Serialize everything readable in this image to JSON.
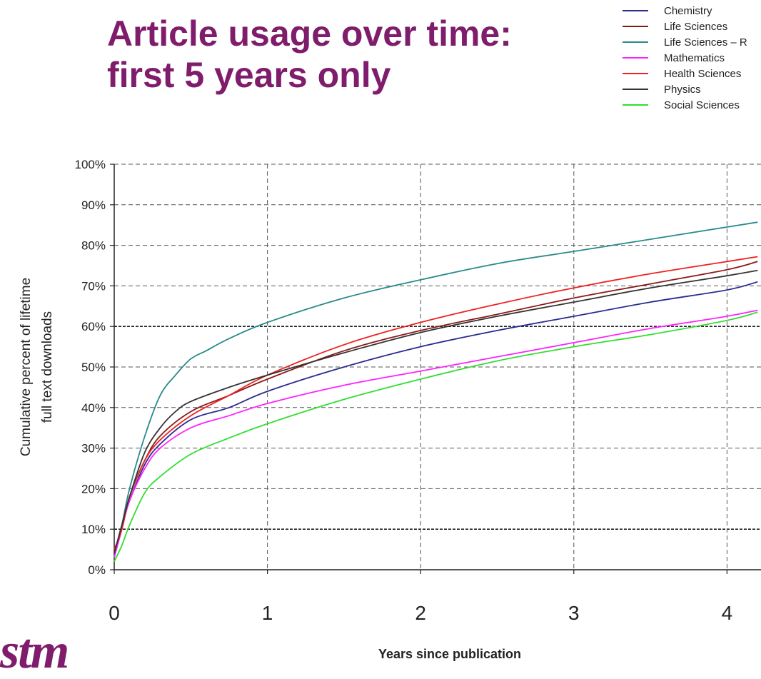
{
  "chart_data": {
    "type": "line",
    "title": "Article usage over time:",
    "subtitle": "first 5 years only",
    "xlabel": "Years since publication",
    "ylabel": [
      "Cumulative percent of lifetime",
      "full text downloads"
    ],
    "xlim": [
      0,
      4.2
    ],
    "ylim": [
      0,
      100
    ],
    "x_ticks": [
      0,
      1,
      2,
      3,
      4
    ],
    "x_tick_labels": [
      "0",
      "1",
      "2",
      "3",
      "4"
    ],
    "y_ticks": [
      0,
      10,
      20,
      30,
      40,
      50,
      60,
      70,
      80,
      90,
      100
    ],
    "y_tick_labels": [
      "0%",
      "10%",
      "20%",
      "30%",
      "40%",
      "50%",
      "60%",
      "70%",
      "80%",
      "90%",
      "100%"
    ],
    "grid": true,
    "legend_position": "top-right",
    "series": [
      {
        "name": "Chemistry",
        "color": "#2b2b8f",
        "x": [
          0,
          0.05,
          0.1,
          0.2,
          0.3,
          0.5,
          0.75,
          1,
          1.5,
          2,
          2.5,
          3,
          3.5,
          4,
          4.2
        ],
        "y": [
          4,
          11,
          17,
          26,
          31,
          37,
          40,
          44,
          50,
          55,
          59,
          62.5,
          66,
          69,
          71
        ]
      },
      {
        "name": "Life Sciences",
        "color": "#8b1a1a",
        "x": [
          0,
          0.05,
          0.1,
          0.2,
          0.3,
          0.5,
          0.75,
          1,
          1.5,
          2,
          2.5,
          3,
          3.5,
          4,
          4.2
        ],
        "y": [
          4,
          11,
          18,
          27,
          33,
          39,
          43,
          47,
          54,
          59,
          63,
          67,
          70.5,
          74,
          76
        ]
      },
      {
        "name": "Life Sciences – R",
        "color": "#2a8a8a",
        "x": [
          0,
          0.05,
          0.1,
          0.2,
          0.3,
          0.4,
          0.5,
          0.6,
          0.75,
          1,
          1.5,
          2,
          2.5,
          3,
          3.5,
          4,
          4.2
        ],
        "y": [
          3,
          11,
          20,
          33,
          43,
          48,
          52,
          54,
          57,
          61,
          67,
          71.5,
          75.5,
          78.5,
          81.5,
          84.5,
          85.7
        ]
      },
      {
        "name": "Mathematics",
        "color": "#ff22ff",
        "x": [
          0,
          0.05,
          0.1,
          0.2,
          0.3,
          0.5,
          0.75,
          1,
          1.5,
          2,
          2.5,
          3,
          3.5,
          4,
          4.2
        ],
        "y": [
          3,
          10,
          17,
          25,
          30,
          35,
          38,
          41,
          45.5,
          49,
          52.5,
          56,
          59.5,
          62.5,
          64
        ]
      },
      {
        "name": "Health Sciences",
        "color": "#ee2222",
        "x": [
          0,
          0.05,
          0.1,
          0.2,
          0.3,
          0.5,
          0.75,
          1,
          1.5,
          2,
          2.5,
          3,
          3.5,
          4,
          4.2
        ],
        "y": [
          5,
          10,
          18,
          27,
          32,
          38,
          43,
          48,
          55.5,
          61,
          65.5,
          69.5,
          73,
          76,
          77.2
        ]
      },
      {
        "name": "Physics",
        "color": "#333333",
        "x": [
          0,
          0.05,
          0.1,
          0.2,
          0.3,
          0.4,
          0.5,
          0.75,
          1,
          1.5,
          2,
          2.5,
          3,
          3.5,
          4,
          4.2
        ],
        "y": [
          4,
          11,
          18,
          29,
          35,
          39,
          41.5,
          45,
          48,
          53.5,
          58.5,
          62.5,
          66,
          69.5,
          72.5,
          73.8
        ]
      },
      {
        "name": "Social Sciences",
        "color": "#33dd33",
        "x": [
          0,
          0.05,
          0.1,
          0.2,
          0.3,
          0.5,
          0.75,
          1,
          1.5,
          2,
          2.5,
          3,
          3.5,
          4,
          4.2
        ],
        "y": [
          2,
          6,
          11,
          19,
          23,
          28.5,
          32.5,
          36,
          42,
          47,
          51.5,
          55,
          58,
          61.5,
          63.5
        ]
      }
    ]
  },
  "logo": {
    "text": "stm"
  }
}
